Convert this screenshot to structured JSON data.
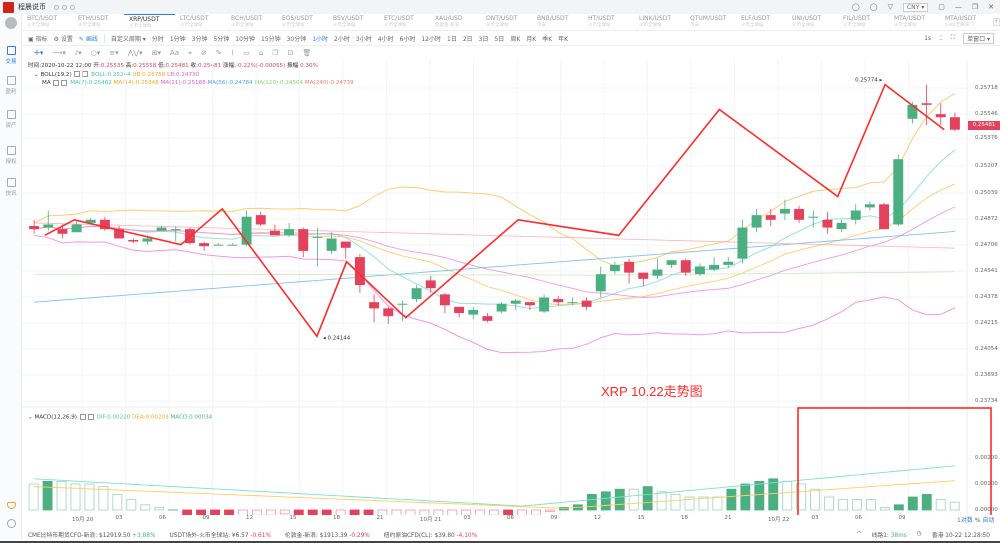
{
  "app": {
    "title": "程晨说币",
    "currency": "CNY"
  },
  "window_controls": [
    "restore-icon",
    "minimize-icon",
    "maximize-icon",
    "close-icon"
  ],
  "sidebar": {
    "items": [
      {
        "label": "交易",
        "icon": "trade-icon",
        "active": true
      },
      {
        "label": "盈利",
        "icon": "profit-icon",
        "active": false
      },
      {
        "label": "资产",
        "icon": "assets-icon",
        "active": false
      },
      {
        "label": "授权",
        "icon": "auth-icon",
        "active": false
      },
      {
        "label": "快讯",
        "icon": "news-icon",
        "active": false
      }
    ]
  },
  "tabs": [
    {
      "pair": "BTC/USDT",
      "exchange": "火币全球站"
    },
    {
      "pair": "ETH/USDT",
      "exchange": "火币全球站"
    },
    {
      "pair": "XRP/USDT",
      "exchange": "火币全球站",
      "active": true
    },
    {
      "pair": "LTC/USDT",
      "exchange": "火币全球站"
    },
    {
      "pair": "BCH/USDT",
      "exchange": "火币全球站"
    },
    {
      "pair": "EOS/USDT",
      "exchange": "火币全球站"
    },
    {
      "pair": "BSV/USDT",
      "exchange": "火币全球站"
    },
    {
      "pair": "ETC/USDT",
      "exchange": "火币全球站"
    },
    {
      "pair": "XAU/USD",
      "exchange": "伦敦金-新浪"
    },
    {
      "pair": "ONT/USDT",
      "exchange": "火币全球站"
    },
    {
      "pair": "BNB/USDT",
      "exchange": "币安"
    },
    {
      "pair": "HT/USDT",
      "exchange": "火币全球站"
    },
    {
      "pair": "LINK/USDT",
      "exchange": "火币全球站"
    },
    {
      "pair": "QTUM/USDT",
      "exchange": "币安"
    },
    {
      "pair": "ELF/USDT",
      "exchange": "火币全球站"
    },
    {
      "pair": "UNI/USDT",
      "exchange": "火币全球站"
    },
    {
      "pair": "FIL/USDT",
      "exchange": "火币全球站"
    },
    {
      "pair": "MTA/USDT",
      "exchange": "火币全球站"
    },
    {
      "pair": "MTA/USDT",
      "exchange": "Gate芝麻开门"
    }
  ],
  "toolbar": {
    "indicator": "指标",
    "settings": "设置",
    "draw": "画线",
    "custom_period": "自定义周期",
    "periods": [
      "分时",
      "1分钟",
      "3分钟",
      "5分钟",
      "10分钟",
      "15分钟",
      "30分钟",
      "1小时",
      "2小时",
      "3小时",
      "4小时",
      "6小时",
      "12小时",
      "1日",
      "2日",
      "3日",
      "5日",
      "周K",
      "月K",
      "季K",
      "年K"
    ],
    "active_period": "1小时",
    "refresh": "1s",
    "window_mode": "单窗口"
  },
  "info": {
    "time_label": "时间:",
    "time": "2020-10-22 12:00",
    "open_label": "开:",
    "open": "0.25535",
    "high_label": "高:",
    "high": "0.25558",
    "low_label": "低:",
    "low": "0.25481",
    "close_label": "收:",
    "close": "0.25481",
    "change_label": "涨幅:",
    "change": "-0.22%(-0.00055)",
    "amp_label": "振幅:",
    "amp": "0.30%"
  },
  "boll": {
    "name": "BOLL(19,2)",
    "boll": "BOLL:0.25244",
    "ub": "UB:0.25758",
    "lb": "LB:0.24730"
  },
  "ma": {
    "name": "MA",
    "ma7": "MA(7):0.25462",
    "ma14": "MA(14):0.25348",
    "ma21": "MA(21):0.25188",
    "ma56": "MA(56):0.24784",
    "ma120": "MA(120):0.24504",
    "ma240": "MA(240):0.24739"
  },
  "macd": {
    "name": "MACD(12,26,9)",
    "dif": "DIF:0.00220",
    "dea": "DEA:0.00203",
    "macd": "MACD:0.00034"
  },
  "price_axis": [
    "0.25718",
    "0.25546",
    "0.25376",
    "0.25207",
    "0.25039",
    "0.24872",
    "0.24706",
    "0.24541",
    "0.24378",
    "0.24215",
    "0.24054",
    "0.23893",
    "0.23734"
  ],
  "current_price": "0.25481",
  "high_marker": "0.25774",
  "low_marker": "0.24144",
  "macd_axis": [
    "0.00200",
    "0.00100",
    "0.00000",
    "-0.00100"
  ],
  "x_axis": [
    "10月 20",
    "03",
    "06",
    "09",
    "12",
    "15",
    "18",
    "21",
    "10月 21",
    "03",
    "06",
    "09",
    "12",
    "15",
    "18",
    "21",
    "10月 22",
    "03",
    "06",
    "09"
  ],
  "scale_controls": {
    "log": "1对数",
    "percent": "%",
    "auto": "自动"
  },
  "annotation": "XRP 10.22走势图",
  "tickers": [
    {
      "name": "CME比特币期货CFD-新浪:",
      "price": "$12919.50",
      "change": "+3.88%",
      "up": true
    },
    {
      "name": "USDT场外-火币全球站:",
      "price": "¥6.57",
      "change": "-0.61%",
      "up": false
    },
    {
      "name": "伦敦金-新浪:",
      "price": "$1913.39",
      "change": "-0.29%",
      "up": false
    },
    {
      "name": "纽约原油CFD(CL):",
      "price": "$39.80",
      "change": "-4.10%",
      "up": false
    }
  ],
  "status": {
    "line_label": "线路1:",
    "latency": "38ms",
    "clock": "香港 10-22 12:28:50"
  },
  "colors": {
    "up": "#4caf82",
    "down": "#e2425c",
    "trend": "#ff2a2a",
    "dif": "#7fe0cc",
    "dea": "#ffcc66",
    "accent": "#2b7de9"
  },
  "chart_data": {
    "type": "candlestick",
    "symbol": "XRP/USDT",
    "interval": "1h",
    "candles": [
      [
        0.2486,
        0.2484,
        0.249,
        0.2481
      ],
      [
        0.2485,
        0.2487,
        0.2496,
        0.2483
      ],
      [
        0.2484,
        0.2481,
        0.2487,
        0.2478
      ],
      [
        0.2482,
        0.2487,
        0.2489,
        0.2482
      ],
      [
        0.2488,
        0.249,
        0.2491,
        0.2487
      ],
      [
        0.249,
        0.2484,
        0.2492,
        0.2483
      ],
      [
        0.2484,
        0.2478,
        0.2486,
        0.2478
      ],
      [
        0.2477,
        0.2476,
        0.2478,
        0.2475
      ],
      [
        0.2476,
        0.2478,
        0.248,
        0.2474
      ],
      [
        0.2483,
        0.2485,
        0.2486,
        0.2483
      ],
      [
        0.2484,
        0.2484,
        0.2486,
        0.2476
      ],
      [
        0.2484,
        0.2475,
        0.2485,
        0.2474
      ],
      [
        0.2475,
        0.2473,
        0.2476,
        0.247
      ],
      [
        0.2474,
        0.2474,
        0.2475,
        0.2474
      ],
      [
        0.2474,
        0.2474,
        0.2475,
        0.2474
      ],
      [
        0.2474,
        0.2492,
        0.2496,
        0.2473
      ],
      [
        0.2493,
        0.2487,
        0.2495,
        0.2486
      ],
      [
        0.2483,
        0.248,
        0.2487,
        0.248
      ],
      [
        0.248,
        0.2484,
        0.2488,
        0.2479
      ],
      [
        0.2484,
        0.247,
        0.2485,
        0.2466
      ],
      [
        0.2479,
        0.2479,
        0.2485,
        0.246
      ],
      [
        0.247,
        0.2478,
        0.2482,
        0.2468
      ],
      [
        0.2476,
        0.2472,
        0.2476,
        0.2465
      ],
      [
        0.2466,
        0.2448,
        0.2468,
        0.2443
      ],
      [
        0.2437,
        0.2433,
        0.2442,
        0.2424
      ],
      [
        0.2433,
        0.2428,
        0.2434,
        0.2423
      ],
      [
        0.2436,
        0.2436,
        0.2438,
        0.2425
      ],
      [
        0.2439,
        0.2446,
        0.2448,
        0.2437
      ],
      [
        0.2451,
        0.2446,
        0.2454,
        0.2443
      ],
      [
        0.2442,
        0.2435,
        0.2443,
        0.243
      ],
      [
        0.2434,
        0.243,
        0.2434,
        0.2427
      ],
      [
        0.2429,
        0.2432,
        0.2434,
        0.2426
      ],
      [
        0.2428,
        0.2425,
        0.243,
        0.2424
      ],
      [
        0.2431,
        0.2436,
        0.2437,
        0.243
      ],
      [
        0.2436,
        0.2438,
        0.2439,
        0.2432
      ],
      [
        0.2437,
        0.2435,
        0.2437,
        0.2432
      ],
      [
        0.2431,
        0.244,
        0.2442,
        0.243
      ],
      [
        0.2439,
        0.2437,
        0.2441,
        0.2435
      ],
      [
        0.2437,
        0.2437,
        0.244,
        0.2435
      ],
      [
        0.2438,
        0.2434,
        0.244,
        0.2432
      ],
      [
        0.2444,
        0.2455,
        0.246,
        0.244
      ],
      [
        0.2457,
        0.2461,
        0.2463,
        0.2455
      ],
      [
        0.2463,
        0.2456,
        0.2465,
        0.2449
      ],
      [
        0.2456,
        0.2452,
        0.2456,
        0.2447
      ],
      [
        0.2454,
        0.2458,
        0.2465,
        0.2452
      ],
      [
        0.2461,
        0.2464,
        0.2464,
        0.2459
      ],
      [
        0.2464,
        0.2456,
        0.2465,
        0.2454
      ],
      [
        0.2455,
        0.246,
        0.2462,
        0.2454
      ],
      [
        0.2458,
        0.2461,
        0.2466,
        0.2457
      ],
      [
        0.2461,
        0.2463,
        0.2466,
        0.2459
      ],
      [
        0.2465,
        0.2485,
        0.249,
        0.2462
      ],
      [
        0.2485,
        0.2493,
        0.2497,
        0.2482
      ],
      [
        0.2493,
        0.249,
        0.2497,
        0.2486
      ],
      [
        0.2494,
        0.2497,
        0.2503,
        0.249
      ],
      [
        0.2497,
        0.249,
        0.2499,
        0.2488
      ],
      [
        0.2492,
        0.2492,
        0.2496,
        0.2485
      ],
      [
        0.249,
        0.2485,
        0.2495,
        0.2481
      ],
      [
        0.2484,
        0.2488,
        0.249,
        0.2482
      ],
      [
        0.249,
        0.2496,
        0.25,
        0.2487
      ],
      [
        0.2498,
        0.25,
        0.2502,
        0.2496
      ],
      [
        0.25,
        0.2484,
        0.2501,
        0.2484
      ],
      [
        0.2487,
        0.2529,
        0.2532,
        0.2486
      ],
      [
        0.2555,
        0.2564,
        0.2566,
        0.2552
      ],
      [
        0.2565,
        0.2564,
        0.2577,
        0.2551
      ],
      [
        0.2558,
        0.2556,
        0.2565,
        0.2551
      ],
      [
        0.2556,
        0.2548,
        0.2559,
        0.2547
      ]
    ],
    "x_ticks": [
      "10月 20",
      "03",
      "06",
      "09",
      "12",
      "15",
      "18",
      "21",
      "10月 21",
      "03",
      "06",
      "09",
      "12",
      "15",
      "18",
      "21",
      "10月 22",
      "03",
      "06",
      "09"
    ],
    "y_ticks": [
      0.25718,
      0.25546,
      0.25376,
      0.25207,
      0.25039,
      0.24872,
      0.24706,
      0.24541,
      0.24378,
      0.24215,
      0.24054,
      0.23893,
      0.23734
    ],
    "annotations": [
      {
        "type": "high",
        "value": 0.25774
      },
      {
        "type": "low",
        "value": 0.24144
      },
      {
        "type": "text",
        "value": "XRP 10.22走势图"
      }
    ]
  }
}
